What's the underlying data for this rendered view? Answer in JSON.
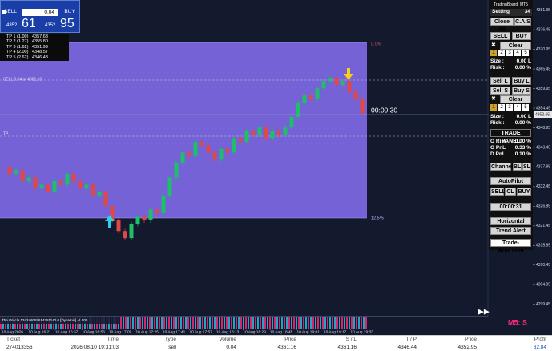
{
  "trade_box": {
    "sell": "SELL",
    "lot": "0.04",
    "buy": "BUY",
    "sell_small": "4352",
    "sell_big": "61",
    "buy_small": "4352",
    "buy_big": "95"
  },
  "tp_list": [
    "TP 1 (1.00) : 4357.63",
    "TP 2 (1.27) : 4355.80",
    "TP 3 (1.62) : 4351.99",
    "TP 4 (2.00) : 4348.57",
    "TP 5 (2.62) : 4346.43"
  ],
  "chart": {
    "fib_top": "0.0%",
    "fib_bottom": "12.5%",
    "sell_line": "SELL 0.04 at 4361.16",
    "tp_line": "TP",
    "timer": "00:00:30",
    "ylim": [
      4296,
      4384.8
    ],
    "yticks": [
      4381.95,
      4376.45,
      4370.95,
      4365.45,
      4359.95,
      4354.45,
      4348.95,
      4343.45,
      4337.95,
      4332.45,
      4326.95,
      4321.45,
      4315.95,
      4310.45,
      4304.95,
      4299.45
    ],
    "current_price": 4352.65,
    "closes": [
      4338,
      4336,
      4337,
      4334,
      4335,
      4332,
      4333,
      4331,
      4334,
      4333,
      4336,
      4334,
      4332,
      4333,
      4330,
      4331,
      4327,
      4323,
      4320,
      4318,
      4322,
      4324,
      4323,
      4326,
      4325,
      4330,
      4335,
      4339,
      4342,
      4341,
      4345,
      4344,
      4342,
      4340,
      4343,
      4342,
      4346,
      4345,
      4348,
      4347,
      4349,
      4346,
      4348,
      4347,
      4349,
      4352,
      4356,
      4358,
      4357,
      4360,
      4362,
      4363,
      4361,
      4362,
      4359,
      4357,
      4353
    ],
    "up_color": "#1fbf6a",
    "down_color": "#e04848",
    "indicator": "The Oracle 134246087614751142 0 [Dynamic] -1.000",
    "signal": "M5: S",
    "times": [
      "10 Aug 2026",
      "10 Aug 16:21",
      "10 Aug 16:37",
      "10 Aug 16:53",
      "10 Aug 17:09",
      "10 Aug 17:25",
      "10 Aug 17:41",
      "10 Aug 17:57",
      "10 Aug 18:13",
      "10 Aug 18:29",
      "10 Aug 18:45",
      "10 Aug 19:01",
      "10 Aug 19:17",
      "10 Aug 19:33"
    ]
  },
  "panel": {
    "title": "TradingBoard_MT5",
    "setting": "Setting",
    "setting_value": "34",
    "close_all": "Close All",
    "cas": "C.A.S",
    "sell": "SELL",
    "buy": "BUY",
    "clear": "Clear",
    "levels": [
      "1",
      "2",
      "3",
      "4",
      "5"
    ],
    "size": "Size :",
    "size_value": "0.00 L",
    "risk": "Risk :",
    "risk_value": "0.00 %",
    "sell_l": "Sell L",
    "buy_l": "Buy L",
    "sell_s": "Sell S",
    "buy_s": "Buy S",
    "clear2": "Clear",
    "size2": "Size :",
    "size2_value": "0.00 L",
    "risk2": "Risk :",
    "risk2_value": "0.00 %",
    "trade_panel": "TRADE PANEL",
    "o_risk": "O Risk",
    "o_risk_value": "0.00 %",
    "o_pnl": "O PnL",
    "o_pnl_value": "0.33 %",
    "d_pnl": "D PnL",
    "d_pnl_value": "0.10 %",
    "channel": "Channel",
    "bl": "BL",
    "sl": "SL",
    "autopilot": "AutoPilot",
    "ap_sell": "SELL",
    "ap_cl": "CL",
    "ap_buy": "BUY",
    "countdown": "00:00:31",
    "horizontal_alert": "Horizontal Alert",
    "trend_alert": "Trend Alert",
    "site": "Trade-Area.com"
  },
  "table": {
    "headers": [
      "Ticket",
      "Time",
      "Type",
      "Volume",
      "Price",
      "S / L",
      "T / P",
      "Price",
      "Profit"
    ],
    "row": [
      "274013356",
      "2026.08.10 19:31:03",
      "sell",
      "0.04",
      "4361.16",
      "4361.16",
      "4346.44",
      "4352.95",
      "32.84"
    ]
  }
}
